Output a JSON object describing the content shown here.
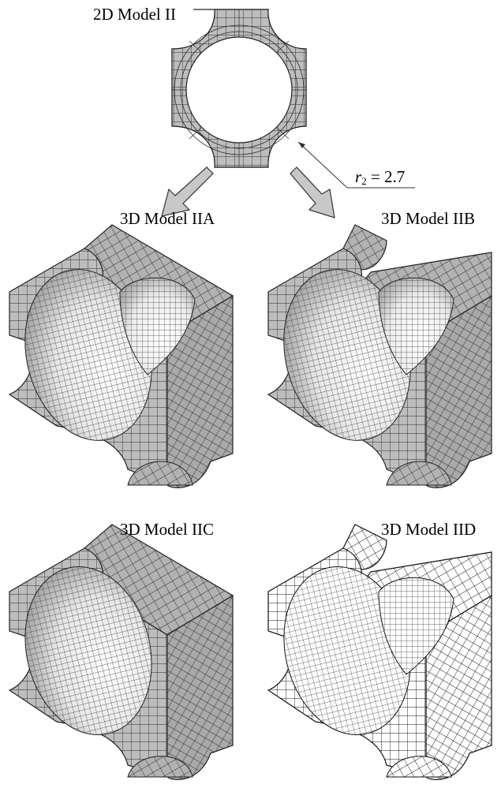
{
  "labels": {
    "model_2d": "2D Model II",
    "model_iia": "3D Model IIA",
    "model_iib": "3D Model IIB",
    "model_iic": "3D Model IIC",
    "model_iid": "3D Model IID",
    "radius_symbol": "r",
    "radius_subscript": "2",
    "radius_value": " = 2.7"
  },
  "colors": {
    "mesh_face": "#bdbdbd",
    "mesh_face_dark": "#a8a8a8",
    "mesh_line": "#2a2a2a",
    "mesh_face_white": "#ffffff",
    "highlight": "#f4f4f4",
    "arrow_fill": "#c8c8c8",
    "arrow_stroke": "#333333"
  }
}
